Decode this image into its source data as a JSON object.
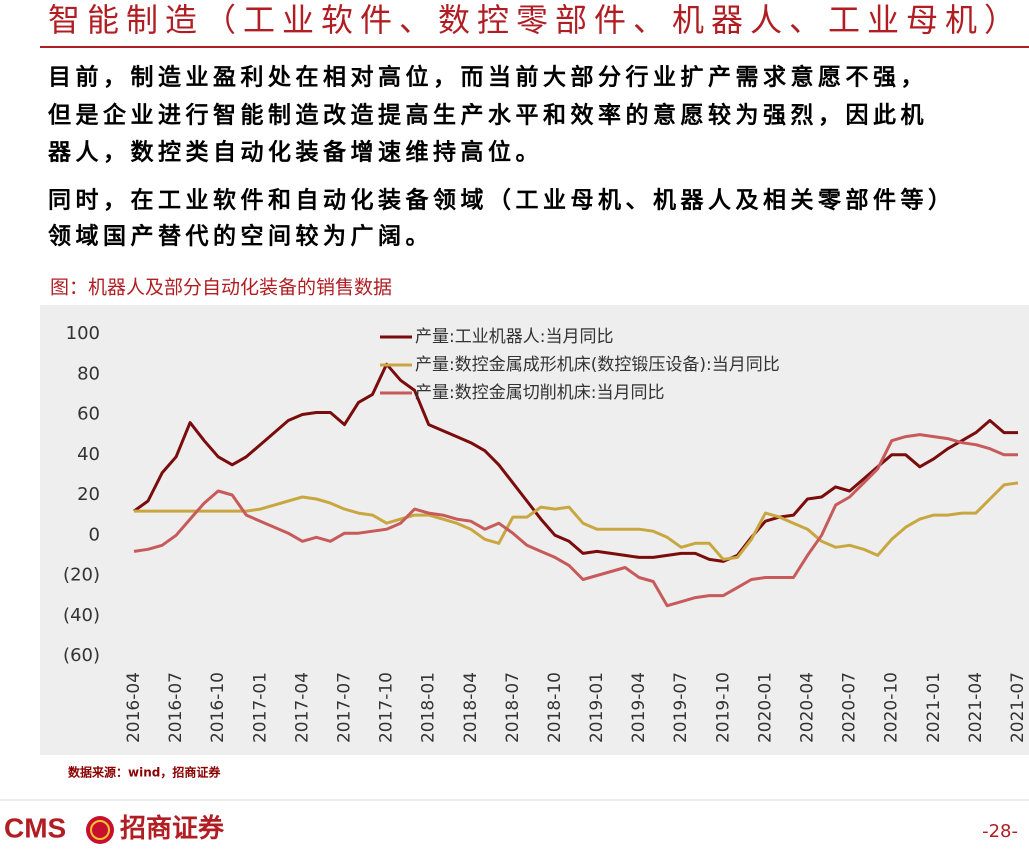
{
  "header": {
    "title": "智能制造（工业软件、数控零部件、机器人、工业母机）"
  },
  "paragraphs": [
    [
      "目前，制造业盈利处在相对高位，而当前大部分行业扩产需求意愿不强，",
      "但是企业进行智能制造改造提高生产水平和效率的意愿较为强烈，因此机",
      "器人，数控类自动化装备增速维持高位。"
    ],
    [
      "同时，在工业软件和自动化装备领域（工业母机、机器人及相关零部件等）",
      "领域国产替代的空间较为广阔。"
    ]
  ],
  "chart_caption": "图：机器人及部分自动化装备的销售数据",
  "chart_data": {
    "type": "line",
    "categories": [
      "2016-04",
      null,
      null,
      "2016-07",
      null,
      null,
      "2016-10",
      null,
      null,
      "2017-01",
      null,
      null,
      "2017-04",
      null,
      null,
      "2017-07",
      null,
      null,
      "2017-10",
      null,
      null,
      "2018-01",
      null,
      null,
      "2018-04",
      null,
      null,
      "2018-07",
      null,
      null,
      "2018-10",
      null,
      null,
      "2019-01",
      null,
      null,
      "2019-04",
      null,
      null,
      "2019-07",
      null,
      null,
      "2019-10",
      null,
      null,
      "2020-01",
      null,
      null,
      "2020-04",
      null,
      null,
      "2020-07",
      null,
      null,
      "2020-10",
      null,
      null,
      "2021-01",
      null,
      null,
      "2021-04",
      null,
      null,
      "2021-07"
    ],
    "series": [
      {
        "name": "产量:工业机器人:当月同比",
        "color": "#7b0c0c",
        "values": [
          12,
          17,
          31,
          39,
          56,
          47,
          39,
          35,
          39,
          45,
          51,
          57,
          60,
          61,
          61,
          55,
          66,
          70,
          85,
          77,
          72,
          55,
          52,
          49,
          46,
          42,
          35,
          26,
          17,
          8,
          0,
          -3,
          -9,
          -8,
          -9,
          -10,
          -11,
          -11,
          -10,
          -9,
          -9,
          -12,
          -13,
          -10,
          -1,
          7,
          9,
          10,
          18,
          19,
          24,
          22,
          28,
          34,
          40,
          40,
          34,
          38,
          43,
          47,
          51,
          57,
          51,
          51
        ]
      },
      {
        "name": "产量:数控金属成形机床(数控锻压设备):当月同比",
        "color": "#c9a740",
        "values": [
          12,
          12,
          12,
          12,
          12,
          12,
          12,
          12,
          12,
          13,
          15,
          17,
          19,
          18,
          16,
          13,
          11,
          10,
          6,
          8,
          10,
          10,
          8,
          6,
          3,
          -2,
          -4,
          9,
          9,
          14,
          13,
          14,
          6,
          3,
          3,
          3,
          3,
          2,
          -1,
          -6,
          -4,
          -4,
          -12,
          -11,
          -2,
          11,
          9,
          6,
          3,
          -3,
          -6,
          -5,
          -7,
          -10,
          -2,
          4,
          8,
          10,
          10,
          11,
          11,
          18,
          25,
          26
        ]
      },
      {
        "name": "产量:数控金属切削机床:当月同比",
        "color": "#c75a5a",
        "values": [
          -8,
          -7,
          -5,
          0,
          8,
          16,
          22,
          20,
          10,
          7,
          4,
          1,
          -3,
          -1,
          -3,
          1,
          1,
          2,
          3,
          6,
          13,
          11,
          10,
          8,
          7,
          3,
          6,
          1,
          -5,
          -8,
          -11,
          -15,
          -22,
          -20,
          -18,
          -16,
          -21,
          -23,
          -35,
          -33,
          -31,
          -30,
          -30,
          -26,
          -22,
          -21,
          -21,
          -21,
          -10,
          0,
          15,
          19,
          26,
          33,
          47,
          49,
          50,
          49,
          48,
          46,
          45,
          43,
          40,
          40
        ]
      }
    ],
    "ylim": [
      -60,
      100
    ],
    "yticks": [
      100,
      80,
      60,
      40,
      20,
      0,
      {
        "value": -20,
        "label": "(20)"
      },
      {
        "value": -40,
        "label": "(40)"
      },
      {
        "value": -60,
        "label": "(60)"
      }
    ],
    "grid": false,
    "legend": "top"
  },
  "source": "数据来源：wind，招商证券",
  "footer": {
    "logo": "CMS",
    "brand": "招商证券",
    "page": "-28-"
  }
}
